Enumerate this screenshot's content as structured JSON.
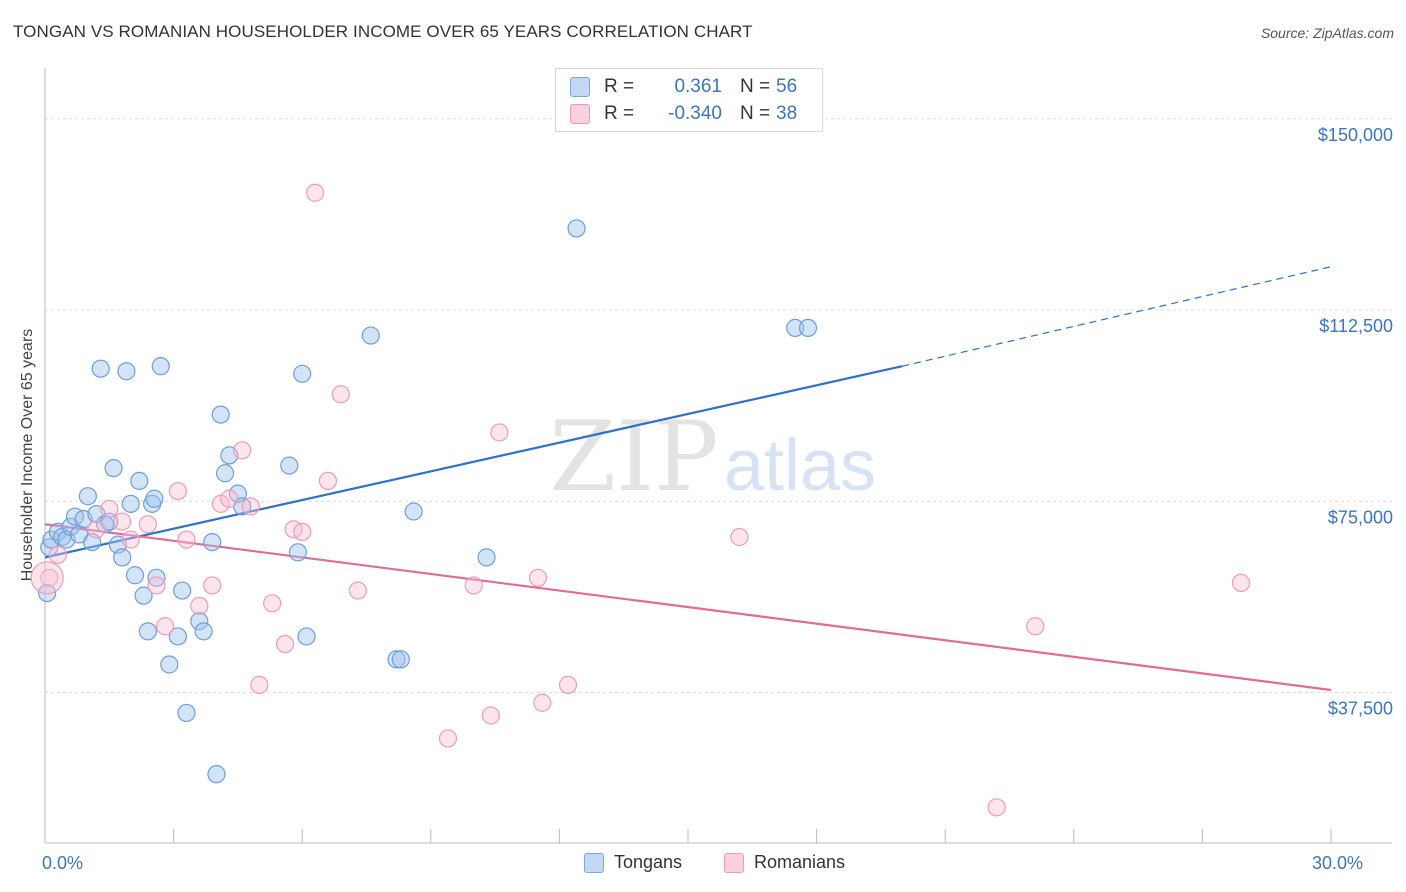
{
  "header": {
    "title": "TONGAN VS ROMANIAN HOUSEHOLDER INCOME OVER 65 YEARS CORRELATION CHART",
    "source": "Source: ZipAtlas.com"
  },
  "watermark": {
    "zip": "ZIP",
    "atlas": "atlas"
  },
  "legend": {
    "rows": [
      {
        "r_label": "R =",
        "r_value": "0.361",
        "n_label": "N =",
        "n_value": "56"
      },
      {
        "r_label": "R =",
        "r_value": "-0.340",
        "n_label": "N =",
        "n_value": "38"
      }
    ]
  },
  "chart_data": {
    "type": "scatter",
    "title": "TONGAN VS ROMANIAN HOUSEHOLDER INCOME OVER 65 YEARS CORRELATION CHART",
    "xlabel": "",
    "ylabel": "Householder Income Over 65 years",
    "xlim": [
      0,
      30
    ],
    "ylim": [
      8000,
      158000
    ],
    "x_tick_labels": [
      {
        "value": 0,
        "label": "0.0%"
      },
      {
        "value": 30,
        "label": "30.0%"
      }
    ],
    "y_tick_labels": [
      {
        "value": 37500,
        "label": "$37,500"
      },
      {
        "value": 75000,
        "label": "$75,000"
      },
      {
        "value": 112500,
        "label": "$112,500"
      },
      {
        "value": 150000,
        "label": "$150,000"
      }
    ],
    "grid": true,
    "legend_position": "top-center",
    "colors": {
      "tongans": "#6fa0e0",
      "tongans_line": "#2f6fcf",
      "romanians": "#f29bb8",
      "romanians_line": "#e36a96"
    },
    "series": [
      {
        "name": "Tongans",
        "r": 0.361,
        "n": 56,
        "trend": {
          "x": [
            0,
            20
          ],
          "y": [
            64000,
            101500
          ],
          "dashed_to": [
            30,
            121000
          ]
        },
        "points": [
          [
            0.05,
            57000
          ],
          [
            0.1,
            66000
          ],
          [
            0.15,
            67500
          ],
          [
            0.3,
            69000
          ],
          [
            0.4,
            68000
          ],
          [
            0.5,
            67500
          ],
          [
            0.6,
            70000
          ],
          [
            0.7,
            72000
          ],
          [
            0.8,
            68500
          ],
          [
            0.9,
            71500
          ],
          [
            1.0,
            76000
          ],
          [
            1.1,
            67000
          ],
          [
            1.2,
            72500
          ],
          [
            1.3,
            101000
          ],
          [
            1.4,
            70500
          ],
          [
            1.5,
            71000
          ],
          [
            1.6,
            81500
          ],
          [
            1.7,
            66500
          ],
          [
            1.8,
            64000
          ],
          [
            1.9,
            100500
          ],
          [
            2.0,
            74500
          ],
          [
            2.1,
            60500
          ],
          [
            2.2,
            79000
          ],
          [
            2.3,
            56500
          ],
          [
            2.4,
            49500
          ],
          [
            2.5,
            74500
          ],
          [
            2.55,
            75500
          ],
          [
            2.6,
            60000
          ],
          [
            2.7,
            101500
          ],
          [
            2.9,
            43000
          ],
          [
            3.1,
            48500
          ],
          [
            3.2,
            57500
          ],
          [
            3.3,
            33500
          ],
          [
            3.6,
            51500
          ],
          [
            3.7,
            49500
          ],
          [
            3.9,
            67000
          ],
          [
            4.0,
            21500
          ],
          [
            4.1,
            92000
          ],
          [
            4.2,
            80500
          ],
          [
            4.3,
            84000
          ],
          [
            4.5,
            76500
          ],
          [
            4.6,
            74000
          ],
          [
            5.7,
            82000
          ],
          [
            5.9,
            65000
          ],
          [
            6.0,
            100000
          ],
          [
            6.1,
            48500
          ],
          [
            7.6,
            107500
          ],
          [
            8.2,
            44000
          ],
          [
            8.3,
            44000
          ],
          [
            8.6,
            73000
          ],
          [
            10.3,
            64000
          ],
          [
            12.4,
            128500
          ],
          [
            17.5,
            109000
          ],
          [
            17.8,
            109000
          ]
        ]
      },
      {
        "name": "Romanians",
        "r": -0.34,
        "n": 38,
        "trend": {
          "x": [
            0,
            30
          ],
          "y": [
            70500,
            38000
          ]
        },
        "points": [
          [
            0.1,
            60000
          ],
          [
            0.3,
            64500
          ],
          [
            1.2,
            69500
          ],
          [
            1.5,
            73500
          ],
          [
            1.8,
            71000
          ],
          [
            2.0,
            67500
          ],
          [
            2.4,
            70500
          ],
          [
            2.6,
            58500
          ],
          [
            2.8,
            50500
          ],
          [
            3.1,
            77000
          ],
          [
            3.3,
            67500
          ],
          [
            3.6,
            54500
          ],
          [
            3.9,
            58500
          ],
          [
            4.1,
            74500
          ],
          [
            4.3,
            75500
          ],
          [
            4.6,
            85000
          ],
          [
            4.8,
            74000
          ],
          [
            5.0,
            39000
          ],
          [
            5.3,
            55000
          ],
          [
            5.6,
            47000
          ],
          [
            5.8,
            69500
          ],
          [
            6.0,
            69000
          ],
          [
            6.3,
            135500
          ],
          [
            6.6,
            79000
          ],
          [
            6.9,
            96000
          ],
          [
            7.3,
            57500
          ],
          [
            9.4,
            28500
          ],
          [
            10.0,
            58500
          ],
          [
            10.4,
            33000
          ],
          [
            10.6,
            88500
          ],
          [
            11.5,
            60000
          ],
          [
            11.6,
            35500
          ],
          [
            12.2,
            39000
          ],
          [
            16.2,
            68000
          ],
          [
            22.2,
            15000
          ],
          [
            23.1,
            50500
          ],
          [
            27.9,
            59000
          ]
        ]
      }
    ]
  }
}
